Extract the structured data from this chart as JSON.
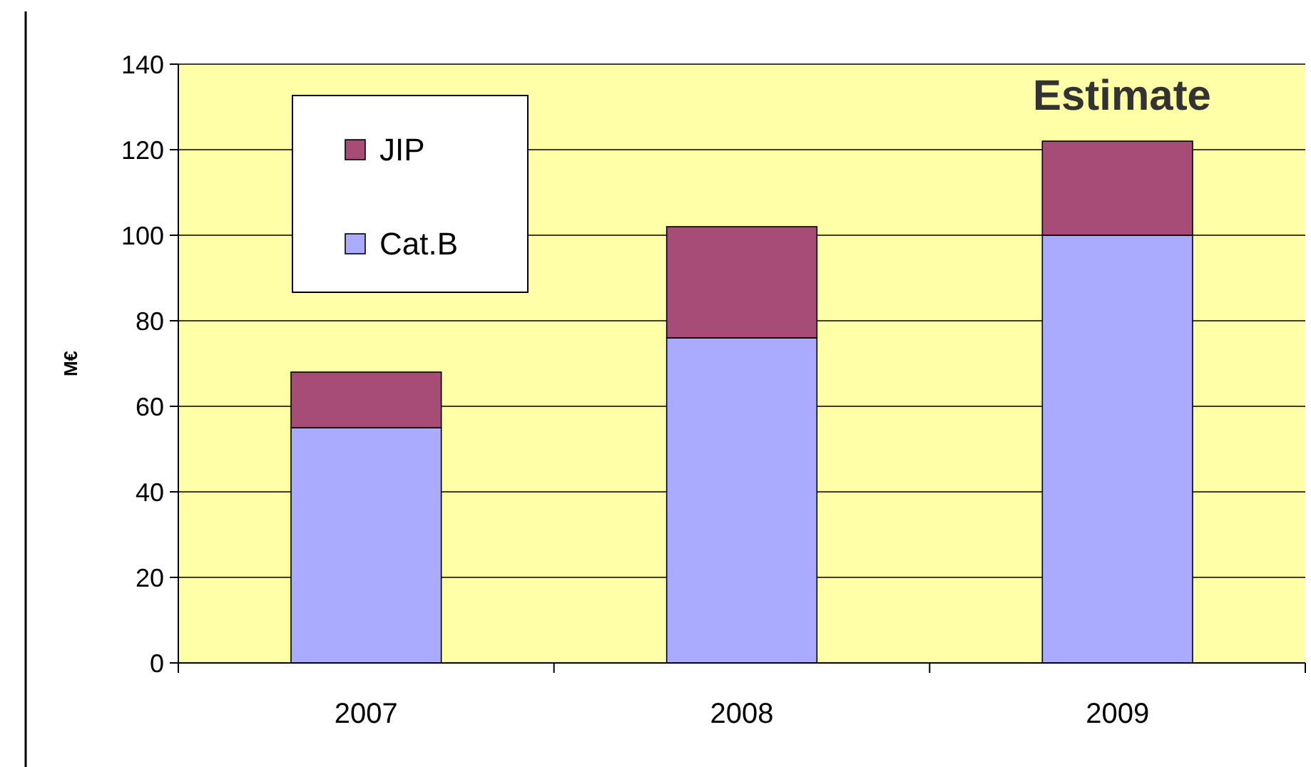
{
  "chart_data": {
    "type": "bar",
    "stacked": true,
    "ylabel": "M€",
    "annotations": [
      "Estimate"
    ],
    "categories": [
      "2007",
      "2008",
      "2009"
    ],
    "series": [
      {
        "name": "Cat.B",
        "color": "#aaaaff",
        "values": [
          55,
          76,
          100
        ]
      },
      {
        "name": "JIP",
        "color": "#a64c76",
        "values": [
          13,
          26,
          22
        ]
      }
    ],
    "ylim": [
      0,
      140
    ],
    "yticks": [
      0,
      20,
      40,
      60,
      80,
      100,
      120,
      140
    ],
    "grid": "y",
    "legend": "top left"
  }
}
